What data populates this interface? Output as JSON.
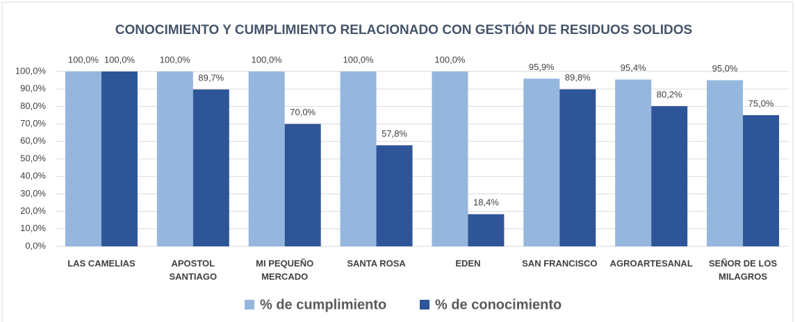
{
  "chart_data": {
    "type": "bar",
    "title": "CONOCIMIENTO Y CUMPLIMIENTO RELACIONADO CON GESTIÓN DE RESIDUOS SOLIDOS",
    "categories": [
      "LAS CAMELIAS",
      "APOSTOL SANTIAGO",
      "MI PEQUEÑO MERCADO",
      "SANTA ROSA",
      "EDEN",
      "SAN FRANCISCO",
      "AGROARTESANAL",
      "SEÑOR DE LOS MILAGROS"
    ],
    "series": [
      {
        "name": "% de cumplimiento",
        "color": "#95b7de",
        "values": [
          100,
          100,
          100,
          100,
          100,
          95.9,
          95.4,
          95.0
        ],
        "value_labels": [
          "100,0%",
          "100,0%",
          "100,0%",
          "100,0%",
          "100,0%",
          "95,9%",
          "95,4%",
          "95,0%"
        ]
      },
      {
        "name": "% de conocimiento",
        "color": "#2e5597",
        "values": [
          100,
          89.7,
          70.0,
          57.8,
          18.4,
          89.8,
          80.2,
          75.0
        ],
        "value_labels": [
          "100,0%",
          "89,7%",
          "70,0%",
          "57,8%",
          "18,4%",
          "89,8%",
          "80,2%",
          "75,0%"
        ]
      }
    ],
    "ylim": [
      0,
      100
    ],
    "yticks": [
      {
        "value": 0,
        "label": "0,0%"
      },
      {
        "value": 10,
        "label": "10,0%"
      },
      {
        "value": 20,
        "label": "20,0%"
      },
      {
        "value": 30,
        "label": "30,0%"
      },
      {
        "value": 40,
        "label": "40,0%"
      },
      {
        "value": 50,
        "label": "50,0%"
      },
      {
        "value": 60,
        "label": "60,0%"
      },
      {
        "value": 70,
        "label": "70,0%"
      },
      {
        "value": 80,
        "label": "80,0%"
      },
      {
        "value": 90,
        "label": "90,0%"
      },
      {
        "value": 100,
        "label": "100,0%"
      }
    ],
    "grid": true,
    "legend": "bottom"
  }
}
